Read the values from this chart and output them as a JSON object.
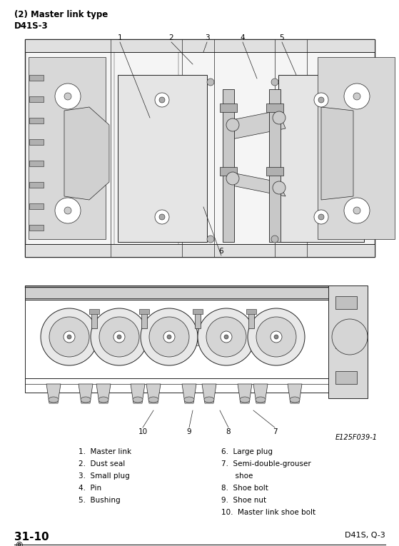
{
  "page_title": "(2) Master link type",
  "subtitle": "D41S-3",
  "bg_color": "#ffffff",
  "figure_label": "E125F039-1",
  "legend_left": [
    "1.  Master link",
    "2.  Dust seal",
    "3.  Small plug",
    "4.  Pin",
    "5.  Bushing"
  ],
  "legend_right": [
    "6.  Large plug",
    "7.  Semi-double-grouser",
    "      shoe",
    "8.  Shoe bolt",
    "9.  Shoe nut",
    "10.  Master link shoe bolt"
  ],
  "page_number": "31-10",
  "page_circle": "®",
  "page_ref": "D41S, Q-3",
  "draw_color": "#222222",
  "light_gray": "#cccccc",
  "mid_gray": "#999999",
  "dark_gray": "#555555"
}
